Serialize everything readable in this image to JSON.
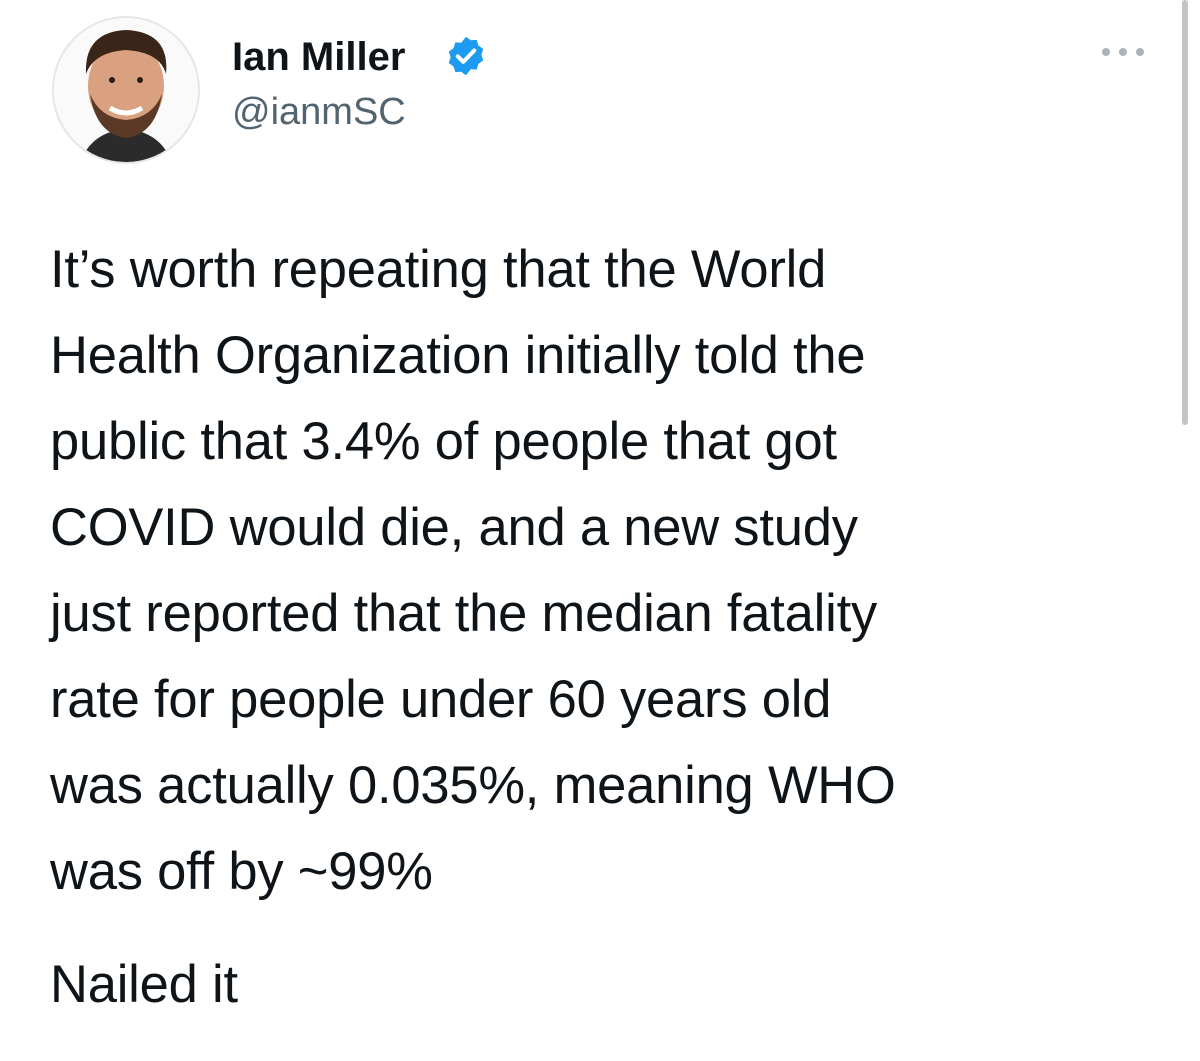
{
  "author": {
    "name": "Ian Miller",
    "handle": "@ianmSC"
  },
  "tweet": {
    "lines": [
      "It’s worth repeating that the World",
      "Health Organization initially told the",
      "public that 3.4% of people that got",
      "COVID would die, and a new study",
      "just reported that the median fatality",
      "rate for people under 60 years old",
      "was actually 0.035%, meaning WHO",
      "was off by ~99%"
    ],
    "closing": "Nailed it"
  }
}
